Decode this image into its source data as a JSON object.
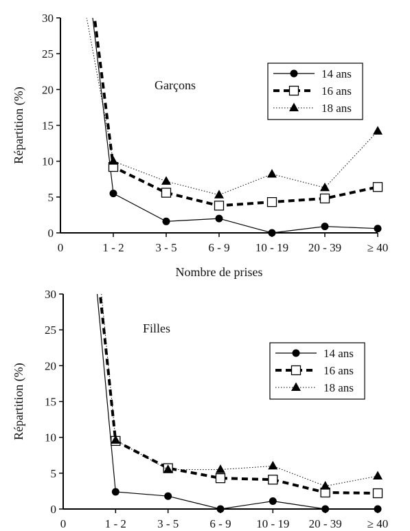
{
  "chart_data": [
    {
      "type": "line",
      "title": "Garçons",
      "xlabel": "Nombre de prises",
      "ylabel": "Répartition (%)",
      "ylim": [
        0,
        30
      ],
      "yticks": [
        "0",
        "5",
        "10",
        "15",
        "20",
        "25",
        "30"
      ],
      "origin_label": "0",
      "categories": [
        "1 - 2",
        "3 - 5",
        "6 - 9",
        "10 - 19",
        "20 - 39",
        "≥ 40"
      ],
      "legend_position": "top-right",
      "grid": false,
      "series": [
        {
          "name": "14 ans",
          "marker": "circle",
          "style": "solid",
          "lead_in_x": 0.55,
          "values": [
            5.5,
            1.6,
            2.0,
            0.0,
            0.9,
            0.6
          ]
        },
        {
          "name": "16 ans",
          "marker": "square",
          "style": "dashed",
          "lead_in_x": 0.58,
          "values": [
            9.2,
            5.6,
            3.8,
            4.3,
            4.8,
            6.4
          ]
        },
        {
          "name": "18 ans",
          "marker": "triangle",
          "style": "dotted",
          "lead_in_x": 0.4,
          "values": [
            10.0,
            7.2,
            5.3,
            8.2,
            6.3,
            14.2
          ]
        }
      ]
    },
    {
      "type": "line",
      "title": "Filles",
      "xlabel": "",
      "ylabel": "Répartition (%)",
      "ylim": [
        0,
        30
      ],
      "yticks": [
        "0",
        "5",
        "10",
        "15",
        "20",
        "25",
        "30"
      ],
      "origin_label": "0",
      "categories": [
        "1 - 2",
        "3 - 5",
        "6 - 9",
        "10 - 19",
        "20 - 39",
        "≥ 40"
      ],
      "legend_position": "center-right",
      "grid": false,
      "series": [
        {
          "name": "14 ans",
          "marker": "circle",
          "style": "solid",
          "lead_in_x": 0.6,
          "values": [
            2.4,
            1.8,
            0.0,
            1.1,
            0.0,
            0.0
          ]
        },
        {
          "name": "16 ans",
          "marker": "square",
          "style": "dashed",
          "lead_in_x": 0.65,
          "values": [
            9.5,
            5.7,
            4.3,
            4.1,
            2.3,
            2.2
          ]
        },
        {
          "name": "18 ans",
          "marker": "triangle",
          "style": "dotted",
          "lead_in_x": 0.68,
          "values": [
            9.6,
            5.5,
            5.5,
            6.0,
            3.2,
            4.6
          ]
        }
      ]
    }
  ]
}
